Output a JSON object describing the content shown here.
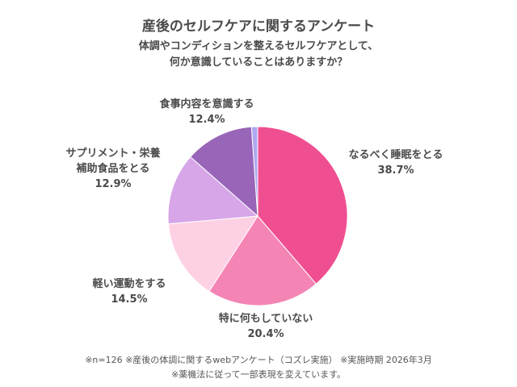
{
  "chart_data": {
    "type": "pie",
    "title": "産後のセルフケアに関するアンケート",
    "subtitle_lines": [
      "体調やコンディションを整えるセルフケアとして、",
      "何か意識していることはありますか？"
    ],
    "slices": [
      {
        "label": "なるべく睡眠をとる",
        "value": 38.7,
        "value_label": "38.7%",
        "color": "#ef4f91"
      },
      {
        "label": "特に何もしていない",
        "value": 20.4,
        "value_label": "20.4%",
        "color": "#f484b4"
      },
      {
        "label": "軽い運動をする",
        "value": 14.5,
        "value_label": "14.5%",
        "color": "#fdd0e3"
      },
      {
        "label": "サプリメント・栄養補助食品をとる",
        "label_lines": [
          "サプリメント・栄養",
          "補助食品をとる"
        ],
        "value": 12.9,
        "value_label": "12.9%",
        "color": "#d7a6e8"
      },
      {
        "label": "食事内容を意識する",
        "value": 12.4,
        "value_label": "12.4%",
        "color": "#9865b8"
      },
      {
        "label": "",
        "value": 1.1,
        "color": "#b0a8ef"
      }
    ],
    "start_angle": "12 o'clock, clockwise"
  },
  "footer": {
    "line1": "※n=126 ※産後の体調に関するwebアンケート（コズレ実施） ※実施時期 2026年3月",
    "line2": "※薬機法に従って一部表現を変えています。"
  }
}
